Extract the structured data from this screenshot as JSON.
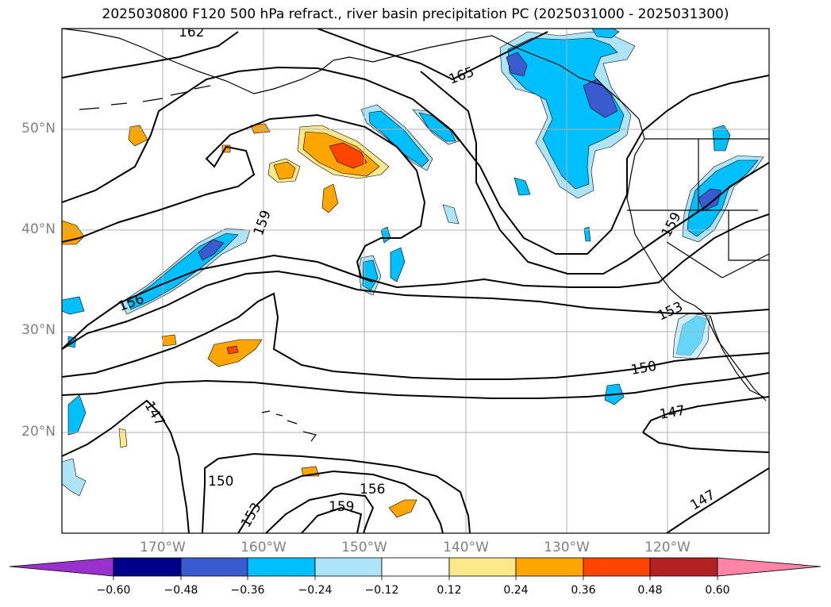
{
  "title": "2025030800 F120 500 hPa refract., river basin precipitation PC (2025031000 - 2025031300)",
  "lat_labels": [
    "50°N",
    "40°N",
    "30°N",
    "20°N"
  ],
  "lon_labels": [
    "170°W",
    "160°W",
    "150°W",
    "140°W",
    "130°W",
    "120°W"
  ],
  "contour_labels": [
    "162",
    "165",
    "159",
    "156",
    "159",
    "153",
    "150",
    "147",
    "147",
    "150",
    "153",
    "156",
    "159",
    "147"
  ],
  "colorbar": {
    "ticks": [
      "−0.60",
      "−0.48",
      "−0.36",
      "−0.24",
      "−0.12",
      "0.12",
      "0.24",
      "0.36",
      "0.48",
      "0.60"
    ],
    "colors": {
      "under": "#9932cc",
      "b1": "#00008b",
      "b2": "#3a5bd0",
      "b3": "#00bfff",
      "b4": "#aee4f8",
      "b5": "#ffffff",
      "b6": "#ffe88a",
      "b7": "#ffa500",
      "b8": "#ff4500",
      "b9": "#b22222",
      "over": "#ff85a8"
    }
  }
}
